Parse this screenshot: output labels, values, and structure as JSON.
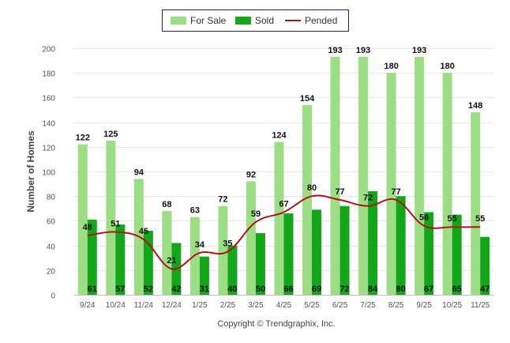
{
  "chart_data": {
    "type": "bar",
    "title": "",
    "xlabel": "",
    "ylabel": "Number of Homes",
    "ylim": [
      0,
      200
    ],
    "yticks": [
      0,
      20,
      40,
      60,
      80,
      100,
      120,
      140,
      160,
      180,
      200
    ],
    "grid": true,
    "legend": "top-center",
    "categories": [
      "9/24",
      "10/24",
      "11/24",
      "12/24",
      "1/25",
      "2/25",
      "3/25",
      "4/25",
      "5/25",
      "6/25",
      "7/25",
      "8/25",
      "9/25",
      "10/25",
      "11/25"
    ],
    "series": [
      {
        "name": "For Sale",
        "kind": "bar",
        "color": "#9ddd85",
        "values": [
          122,
          125,
          94,
          68,
          63,
          72,
          92,
          124,
          154,
          193,
          193,
          180,
          193,
          180,
          148
        ]
      },
      {
        "name": "Sold",
        "kind": "bar",
        "color": "#14a61a",
        "values": [
          61,
          57,
          52,
          42,
          31,
          40,
          50,
          66,
          69,
          72,
          84,
          80,
          67,
          65,
          47
        ]
      },
      {
        "name": "Pended",
        "kind": "line",
        "color": "#b01515",
        "values": [
          48,
          51,
          45,
          21,
          34,
          35,
          59,
          67,
          80,
          77,
          72,
          77,
          56,
          55,
          55
        ]
      }
    ],
    "footer": "Copyright © Trendgraphix, Inc."
  }
}
